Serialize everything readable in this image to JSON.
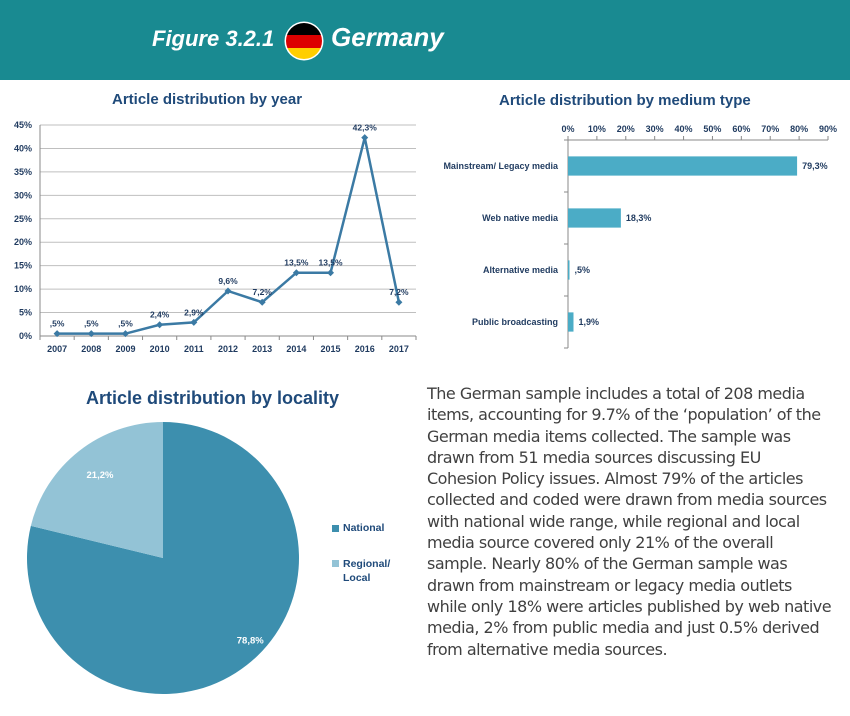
{
  "header": {
    "figure_label": "Figure 3.2.1",
    "country": "Germany",
    "flag_icon": "germany-flag-icon",
    "colors": {
      "banner": "#198a91",
      "flag_black": "#000000",
      "flag_red": "#dd0000",
      "flag_gold": "#ffce00"
    }
  },
  "description": "The German sample includes a total of 208 media items, accounting for 9.7% of the ‘population’ of the German media items collected. The sample was drawn from 51 media sources discussing EU Cohesion Policy issues.  Almost 79% of the articles collected and coded were drawn from media sources with national wide range, while regional and local media source covered only 21% of the overall sample. Nearly 80% of the German sample was drawn from mainstream or legacy media outlets while only 18% were articles published by web native media, 2% from public media and just 0.5% derived from alternative media sources.",
  "chart_data": [
    {
      "type": "line",
      "title": "Article distribution by year",
      "categories": [
        "2007",
        "2008",
        "2009",
        "2010",
        "2011",
        "2012",
        "2013",
        "2014",
        "2015",
        "2016",
        "2017"
      ],
      "values": [
        0.5,
        0.5,
        0.5,
        2.4,
        2.9,
        9.6,
        7.2,
        13.5,
        13.5,
        42.3,
        7.2
      ],
      "data_labels": [
        ",5%",
        ",5%",
        ",5%",
        "2,4%",
        "2,9%",
        "9,6%",
        "7,2%",
        "13,5%",
        "13,5%",
        "42,3%",
        "7,2%"
      ],
      "y_ticks": [
        "0%",
        "5%",
        "10%",
        "15%",
        "20%",
        "25%",
        "30%",
        "35%",
        "40%",
        "45%"
      ],
      "ylim": [
        0,
        45
      ],
      "grid": true,
      "color": "#3b7aa4"
    },
    {
      "type": "bar",
      "orientation": "horizontal",
      "title": "Article distribution by medium type",
      "categories": [
        "Mainstream/ Legacy media",
        "Web native media",
        "Alternative media",
        "Public broadcasting"
      ],
      "values": [
        79.3,
        18.3,
        0.5,
        1.9
      ],
      "data_labels": [
        "79,3%",
        "18,3%",
        ",5%",
        "1,9%"
      ],
      "x_ticks": [
        "0%",
        "10%",
        "20%",
        "30%",
        "40%",
        "50%",
        "60%",
        "70%",
        "80%",
        "90%"
      ],
      "xlim": [
        0,
        90
      ],
      "x_axis_position": "top",
      "color": "#4bacc6"
    },
    {
      "type": "pie",
      "title": "Article distribution by locality",
      "categories": [
        "National",
        "Regional/ Local"
      ],
      "values": [
        78.8,
        21.2
      ],
      "data_labels": [
        "78,8%",
        "21,2%"
      ],
      "legend_labels": [
        "National",
        "Regional/\nLocal"
      ],
      "colors": [
        "#3d8fae",
        "#93c3d6"
      ],
      "legend": "right"
    }
  ]
}
